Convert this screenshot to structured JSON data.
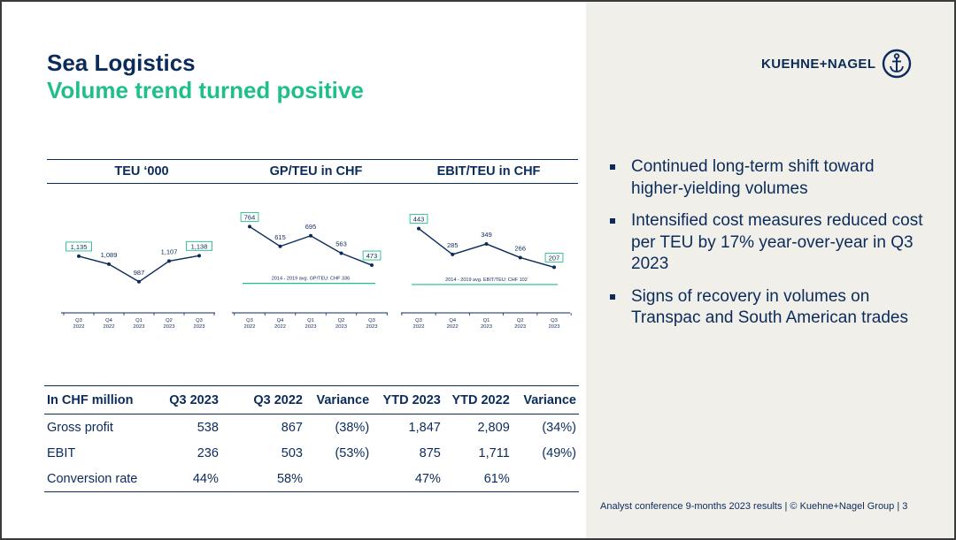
{
  "header": {
    "title": "Sea Logistics",
    "subtitle": "Volume trend turned positive",
    "logo_text": "KUEHNE+NAGEL"
  },
  "colors": {
    "navy": "#0b2b5b",
    "green": "#1fbf8a",
    "panel": "#f1efe9"
  },
  "chart_data": [
    {
      "type": "line",
      "title": "TEU ‘000",
      "categories": [
        [
          "Q3",
          "2022"
        ],
        [
          "Q4",
          "2022"
        ],
        [
          "Q1",
          "2023"
        ],
        [
          "Q2",
          "2023"
        ],
        [
          "Q3",
          "2023"
        ]
      ],
      "values": [
        1135,
        1089,
        987,
        1107,
        1138
      ],
      "labels": [
        "1,135",
        "1,089",
        "987",
        "1,107",
        "1,138"
      ],
      "boxed_points": [
        0,
        4
      ],
      "ylim": [
        950,
        1350
      ]
    },
    {
      "type": "line",
      "title": "GP/TEU in CHF",
      "categories": [
        [
          "Q3",
          "2022"
        ],
        [
          "Q4",
          "2022"
        ],
        [
          "Q1",
          "2023"
        ],
        [
          "Q2",
          "2023"
        ],
        [
          "Q3",
          "2023"
        ]
      ],
      "values": [
        764,
        615,
        695,
        563,
        473
      ],
      "labels": [
        "764",
        "615",
        "695",
        "563",
        "473"
      ],
      "boxed_points": [
        0,
        4
      ],
      "ylim": [
        300,
        820
      ],
      "reference": {
        "value": 336,
        "label": "2014 - 2019 avg. GP/TEU: CHF 336"
      }
    },
    {
      "type": "line",
      "title": "EBIT/TEU in CHF",
      "categories": [
        [
          "Q3",
          "2022"
        ],
        [
          "Q4",
          "2022"
        ],
        [
          "Q1",
          "2023"
        ],
        [
          "Q2",
          "2023"
        ],
        [
          "Q3",
          "2023"
        ]
      ],
      "values": [
        443,
        285,
        349,
        266,
        207
      ],
      "labels": [
        "443",
        "285",
        "349",
        "266",
        "207"
      ],
      "boxed_points": [
        0,
        4
      ],
      "ylim": [
        80,
        500
      ],
      "reference": {
        "value": 102,
        "label": "2014 - 2019 avg. EBIT/TEU: CHF 102"
      }
    }
  ],
  "bullets": [
    "Continued long-term shift toward higher-yielding volumes",
    "Intensified cost measures reduced cost per TEU by 17% year-over-year in Q3 2023",
    "Signs of recovery in volumes on Transpac and South American trades"
  ],
  "table": {
    "headers": [
      "In CHF million",
      "Q3 2023",
      "Q3 2022",
      "Variance",
      "YTD 2023",
      "YTD 2022",
      "Variance"
    ],
    "rows": [
      [
        "Gross profit",
        "538",
        "867",
        "(38%)",
        "1,847",
        "2,809",
        "(34%)"
      ],
      [
        "EBIT",
        "236",
        "503",
        "(53%)",
        "875",
        "1,711",
        "(49%)"
      ],
      [
        "Conversion rate",
        "44%",
        "58%",
        "",
        "47%",
        "61%",
        ""
      ]
    ]
  },
  "footer": "Analyst conference 9-months 2023 results | © Kuehne+Nagel Group | 3"
}
